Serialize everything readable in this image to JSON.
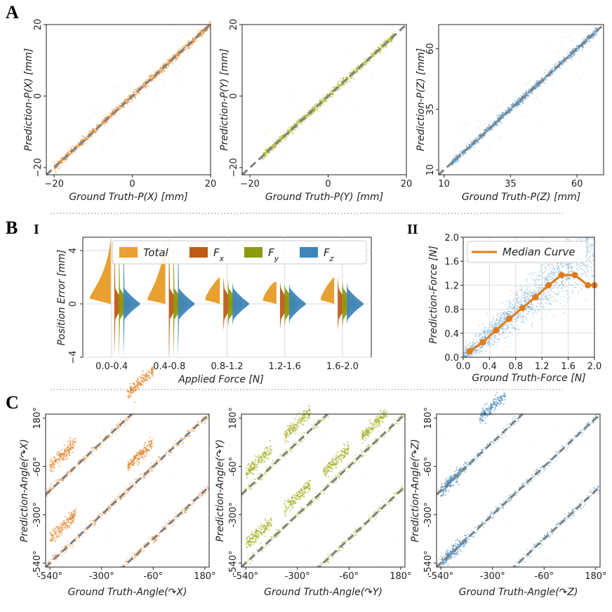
{
  "panel_labels": {
    "A": "A",
    "B": "B",
    "C": "C",
    "B_I": "I",
    "B_II": "II"
  },
  "colors": {
    "orange": "#e07b1a",
    "olive": "#a3ad1a",
    "blue": "#3f86b8",
    "rust": "#c05b15",
    "gold": "#e8a030",
    "green": "#8c9a10",
    "identity": "#808080"
  },
  "chart_data": [
    {
      "id": "A1",
      "type": "scatter",
      "xlabel": "Ground Truth-P(X) [mm]",
      "ylabel": "Prediction-P(X) [mm]",
      "xlim": [
        -22,
        20
      ],
      "ylim": [
        -22,
        20
      ],
      "xticks": [
        -20,
        0,
        20
      ],
      "yticks": [
        -20,
        0,
        20
      ],
      "xticklabels": [
        "−20",
        "0",
        "20"
      ],
      "yticklabels": [
        "−20",
        "0",
        "20"
      ],
      "identity_line": true,
      "color": "orange",
      "trend": {
        "x0": -20,
        "x1": 20
      }
    },
    {
      "id": "A2",
      "type": "scatter",
      "xlabel": "Ground Truth-P(Y) [mm]",
      "ylabel": "Prediction-P(Y) [mm]",
      "xlim": [
        -22,
        20
      ],
      "ylim": [
        -22,
        20
      ],
      "xticks": [
        -20,
        0,
        20
      ],
      "yticks": [
        -20,
        0,
        20
      ],
      "xticklabels": [
        "−20",
        "0",
        "20"
      ],
      "yticklabels": [
        "−20",
        "0",
        "20"
      ],
      "identity_line": true,
      "color": "olive",
      "trend": {
        "x0": -17,
        "x1": 17
      }
    },
    {
      "id": "A3",
      "type": "scatter",
      "xlabel": "Ground Truth-P(Z) [mm]",
      "ylabel": "Prediction-P(Z) [mm]",
      "xlim": [
        8,
        70
      ],
      "ylim": [
        8,
        70
      ],
      "xticks": [
        10,
        35,
        60
      ],
      "yticks": [
        10,
        35,
        60
      ],
      "xticklabels": [
        "10",
        "35",
        "60"
      ],
      "yticklabels": [
        "10",
        "35",
        "60"
      ],
      "identity_line": true,
      "color": "blue",
      "trend": {
        "x0": 13,
        "x1": 68
      }
    },
    {
      "id": "B-I",
      "type": "violin",
      "xlabel": "Applied Force [N]",
      "ylabel": "Position Error [mm]",
      "ylim": [
        -4,
        5
      ],
      "yticks": [
        -4,
        0,
        4
      ],
      "yticklabels": [
        "−4",
        "0",
        "4"
      ],
      "categories": [
        "0.0-0.4",
        "0.4-0.8",
        "0.8-1.2",
        "1.2-1.6",
        "1.6-2.0"
      ],
      "legend": {
        "position": "top-right",
        "entries": [
          {
            "label": "Total",
            "color": "gold"
          },
          {
            "label": "F",
            "sub": "x",
            "color": "rust"
          },
          {
            "label": "F",
            "sub": "y",
            "color": "green"
          },
          {
            "label": "F",
            "sub": "z",
            "color": "blue"
          }
        ]
      },
      "series": [
        {
          "name": "Total",
          "side": "left",
          "color": "gold",
          "width": [
            1.0,
            0.85,
            0.7,
            0.65,
            0.65
          ],
          "median": [
            0.5,
            0.4,
            0.4,
            0.35,
            0.4
          ],
          "max": [
            5.0,
            5.0,
            2.0,
            1.6,
            2.0
          ]
        },
        {
          "name": "F_x",
          "side": "right",
          "color": "rust",
          "min": [
            -4.0,
            -4.0,
            -2.0,
            -1.9,
            -2.0
          ],
          "max": [
            5.0,
            5.0,
            2.0,
            1.6,
            2.0
          ]
        },
        {
          "name": "F_y",
          "side": "right",
          "color": "green",
          "min": [
            -4.0,
            -4.0,
            -1.8,
            -1.7,
            -1.8
          ],
          "max": [
            5.0,
            5.0,
            1.8,
            1.5,
            1.8
          ]
        },
        {
          "name": "F_z",
          "side": "right",
          "color": "blue",
          "min": [
            -4.0,
            -4.0,
            -1.6,
            -1.5,
            -1.5
          ],
          "max": [
            5.0,
            5.0,
            1.6,
            1.5,
            1.6
          ]
        }
      ]
    },
    {
      "id": "B-II",
      "type": "scatter",
      "xlabel": "Ground Truth-Force [N]",
      "ylabel": "Prediction-Force [N]",
      "xlim": [
        0,
        2.0
      ],
      "ylim": [
        0,
        2.0
      ],
      "xticks": [
        0,
        0.4,
        0.8,
        1.2,
        1.6,
        2.0
      ],
      "yticks": [
        0,
        0.4,
        0.8,
        1.2,
        1.6,
        2.0
      ],
      "xticklabels": [
        "0.0",
        "0.4",
        "0.8",
        "1.2",
        "1.6",
        "2.0"
      ],
      "yticklabels": [
        "0.0",
        "0.4",
        "0.8",
        "1.2",
        "1.6",
        "2.0"
      ],
      "color": "blue",
      "legend": {
        "position": "top-left",
        "entries": [
          {
            "label": "Median Curve",
            "color": "orange"
          }
        ]
      },
      "series": [
        {
          "name": "Median Curve",
          "x": [
            0.1,
            0.3,
            0.5,
            0.7,
            0.9,
            1.1,
            1.3,
            1.5,
            1.7,
            1.9,
            2.0
          ],
          "y": [
            0.1,
            0.25,
            0.45,
            0.64,
            0.82,
            1.0,
            1.2,
            1.37,
            1.37,
            1.2,
            1.2
          ]
        }
      ]
    },
    {
      "id": "C1",
      "type": "scatter",
      "xlabel": "Ground Truth-Angle(↷X)",
      "ylabel": "Prediction-Angle(↷X)",
      "xlim": [
        -560,
        200
      ],
      "ylim": [
        -560,
        200
      ],
      "xticks": [
        -540,
        -300,
        -60,
        180
      ],
      "yticks": [
        -540,
        -300,
        -60,
        180
      ],
      "xticklabels": [
        "-540°",
        "-300°",
        "-60°",
        "180°"
      ],
      "yticklabels": [
        "-540°",
        "-300°",
        "-60°",
        "180°"
      ],
      "identity_offsets": [
        -360,
        0,
        360
      ],
      "color": "orange",
      "clusters": [
        [
          -540,
          -420
        ],
        [
          -180,
          -60
        ],
        [
          -540,
          -60
        ],
        [
          -180,
          300
        ]
      ]
    },
    {
      "id": "C2",
      "type": "scatter",
      "xlabel": "Ground Truth-Angle(↷Y)",
      "ylabel": "Prediction-Angle(↷Y)",
      "xlim": [
        -560,
        200
      ],
      "ylim": [
        -560,
        200
      ],
      "xticks": [
        -540,
        -300,
        -60,
        180
      ],
      "yticks": [
        -540,
        -300,
        -60,
        180
      ],
      "xticklabels": [
        "-540°",
        "-300°",
        "-60°",
        "180°"
      ],
      "yticklabels": [
        "-540°",
        "-300°",
        "-60°",
        "180°"
      ],
      "identity_offsets": [
        -360,
        0,
        360
      ],
      "color": "olive",
      "clusters": [
        [
          -540,
          -450
        ],
        [
          -360,
          -270
        ],
        [
          -180,
          -90
        ],
        [
          0,
          90
        ],
        [
          -540,
          -90
        ],
        [
          -360,
          90
        ]
      ]
    },
    {
      "id": "C3",
      "type": "scatter",
      "xlabel": "Ground Truth-Angle(↷Z)",
      "ylabel": "Prediction-Angle(↷Z)",
      "xlim": [
        -560,
        200
      ],
      "ylim": [
        -560,
        200
      ],
      "xticks": [
        -540,
        -300,
        -60,
        180
      ],
      "yticks": [
        -540,
        -300,
        -60,
        180
      ],
      "xticklabels": [
        "-540°",
        "-300°",
        "-60°",
        "180°"
      ],
      "yticklabels": [
        "-540°",
        "-300°",
        "-60°",
        "180°"
      ],
      "identity_offsets": [
        -360,
        0,
        360
      ],
      "color": "blue",
      "clusters": [
        [
          -540,
          -180
        ],
        [
          -360,
          180
        ],
        [
          -540,
          -540
        ]
      ]
    }
  ]
}
